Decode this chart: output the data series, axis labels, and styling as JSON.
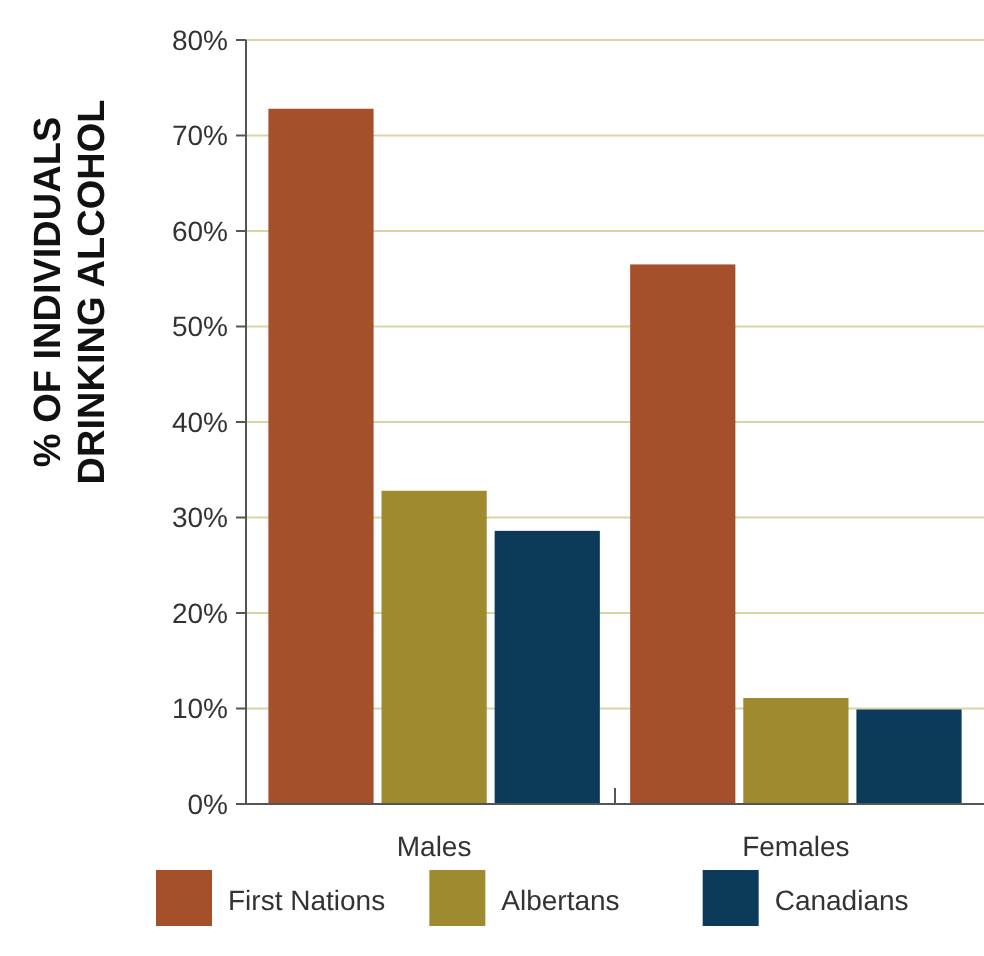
{
  "chart_data": {
    "type": "bar",
    "ylabel": "% OF INDIVIDUALS DRINKING ALCOHOL",
    "categories": [
      "Males",
      "Females"
    ],
    "series": [
      {
        "name": "First Nations",
        "color": "#a5502a",
        "values": [
          72.8,
          56.5
        ]
      },
      {
        "name": "Albertans",
        "color": "#a08a30",
        "values": [
          32.8,
          11.1
        ]
      },
      {
        "name": "Canadians",
        "color": "#0c3a5a",
        "values": [
          28.6,
          9.9
        ]
      }
    ],
    "ylim": [
      0,
      80
    ],
    "yticks": [
      {
        "value": 0,
        "label": "0%"
      },
      {
        "value": 10,
        "label": "10%"
      },
      {
        "value": 20,
        "label": "20%"
      },
      {
        "value": 30,
        "label": "30%"
      },
      {
        "value": 40,
        "label": "40%"
      },
      {
        "value": 50,
        "label": "50%"
      },
      {
        "value": 60,
        "label": "60%"
      },
      {
        "value": 70,
        "label": "70%"
      },
      {
        "value": 80,
        "label": "80%"
      }
    ],
    "grid": "y",
    "legend": "bottom"
  }
}
